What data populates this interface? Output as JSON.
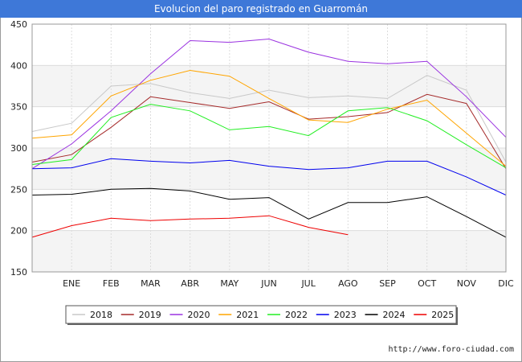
{
  "title": "Evolucion del paro registrado en Guarromán",
  "footer": "http://www.foro-ciudad.com",
  "chart_data": {
    "type": "line",
    "categories": [
      "",
      "ENE",
      "FEB",
      "MAR",
      "ABR",
      "MAY",
      "JUN",
      "JUL",
      "AGO",
      "SEP",
      "OCT",
      "NOV",
      "DIC"
    ],
    "ylim": [
      150,
      450
    ],
    "yticks": [
      150,
      200,
      250,
      300,
      350,
      400,
      450
    ],
    "grid": true,
    "legend_position": "bottom",
    "series": [
      {
        "name": "2018",
        "color": "#c8c8c8",
        "values": [
          320,
          330,
          375,
          378,
          367,
          360,
          370,
          361,
          363,
          360,
          388,
          370,
          283
        ]
      },
      {
        "name": "2019",
        "color": "#a52a2a",
        "values": [
          283,
          292,
          325,
          362,
          355,
          348,
          356,
          335,
          338,
          343,
          365,
          354,
          275
        ]
      },
      {
        "name": "2020",
        "color": "#9a32e0",
        "values": [
          275,
          305,
          345,
          390,
          430,
          428,
          432,
          416,
          405,
          402,
          405,
          362,
          313
        ]
      },
      {
        "name": "2021",
        "color": "#ffa500",
        "values": [
          312,
          316,
          363,
          382,
          394,
          387,
          360,
          334,
          331,
          347,
          358,
          318,
          278
        ]
      },
      {
        "name": "2022",
        "color": "#22ee22",
        "values": [
          280,
          286,
          337,
          353,
          345,
          322,
          326,
          315,
          345,
          349,
          333,
          304,
          276
        ]
      },
      {
        "name": "2023",
        "color": "#0000ee",
        "values": [
          275,
          276,
          287,
          284,
          282,
          285,
          278,
          274,
          276,
          284,
          284,
          265,
          243
        ]
      },
      {
        "name": "2024",
        "color": "#000000",
        "values": [
          243,
          244,
          250,
          251,
          248,
          238,
          240,
          214,
          234,
          234,
          241,
          217,
          192
        ]
      },
      {
        "name": "2025",
        "color": "#ee0000",
        "values": [
          192,
          206,
          215,
          212,
          214,
          215,
          218,
          204,
          195,
          null,
          null,
          null,
          null
        ]
      }
    ]
  }
}
